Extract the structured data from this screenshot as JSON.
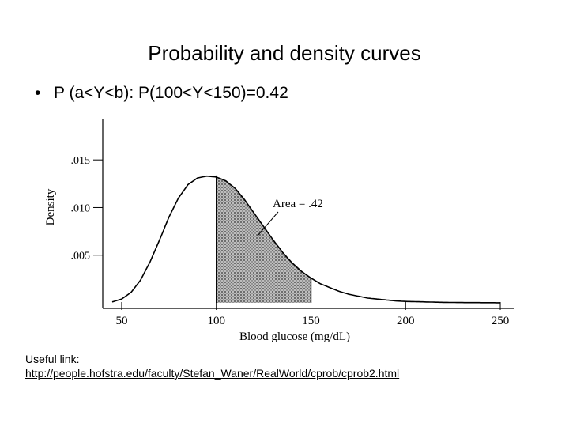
{
  "slide": {
    "title": "Probability and density curves",
    "bullet": "P (a<Y<b): P(100<Y<150)=0.42"
  },
  "chart_data": {
    "type": "area",
    "ylabel": "Density",
    "xlabel": "Blood glucose (mg/dL)",
    "xlim": [
      40,
      255
    ],
    "ylim": [
      0,
      0.0185
    ],
    "x_ticks": [
      50,
      100,
      150,
      200,
      250
    ],
    "x_tick_labels": [
      "50",
      "100",
      "150",
      "200",
      "250"
    ],
    "y_ticks": [
      0.005,
      0.01,
      0.015
    ],
    "y_tick_labels": [
      ".005",
      ".010",
      ".015"
    ],
    "curve": {
      "x": [
        45,
        50,
        55,
        60,
        65,
        70,
        75,
        80,
        85,
        90,
        95,
        100,
        105,
        110,
        115,
        120,
        125,
        130,
        135,
        140,
        145,
        150,
        155,
        160,
        165,
        170,
        175,
        180,
        185,
        190,
        195,
        200,
        210,
        220,
        230,
        240,
        250
      ],
      "y": [
        0.0001,
        0.0004,
        0.0011,
        0.0024,
        0.0043,
        0.0066,
        0.009,
        0.011,
        0.0124,
        0.0131,
        0.0133,
        0.0132,
        0.0128,
        0.012,
        0.0108,
        0.0094,
        0.008,
        0.0066,
        0.0053,
        0.0042,
        0.0033,
        0.0026,
        0.002,
        0.0016,
        0.0012,
        0.0009,
        0.0007,
        0.0005,
        0.0004,
        0.0003,
        0.0002,
        0.00015,
        0.0001,
        5e-05,
        3e-05,
        2e-05,
        1e-05
      ]
    },
    "shaded_region": {
      "from": 100,
      "to": 150
    },
    "annotation": "Area = .42"
  },
  "footer": {
    "label": "Useful link:",
    "link": "http://people.hofstra.edu/faculty/Stefan_Waner/RealWorld/cprob/cprob2.html"
  }
}
